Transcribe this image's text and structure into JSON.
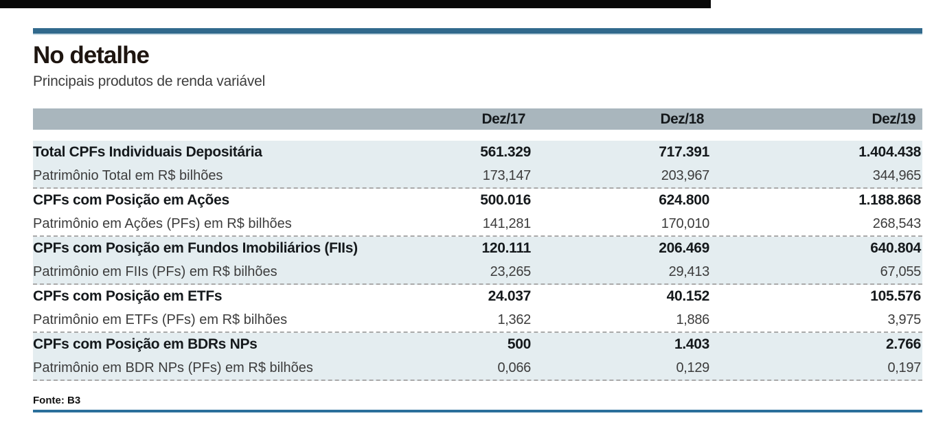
{
  "page": {
    "title": "No detalhe",
    "subtitle": "Principais produtos de renda variável",
    "source": "Fonte: B3"
  },
  "colors": {
    "accent_bar": "#31698c",
    "accent_line": "#2b6f9b",
    "header_band": "#a9b6bd",
    "tinted_row": "#e4edf0",
    "top_black_bar": "#070707",
    "dashed_separator": "#a9a9a9"
  },
  "table": {
    "columns": [
      "Dez/17",
      "Dez/18",
      "Dez/19"
    ],
    "rows": [
      {
        "label": "Total CPFs Individuais Depositária",
        "bold": true,
        "values": [
          "561.329",
          "717.391",
          "1.404.438"
        ]
      },
      {
        "label": "Patrimônio Total em R$ bilhões",
        "bold": false,
        "values": [
          "173,147",
          "203,967",
          "344,965"
        ]
      },
      {
        "label": "CPFs com Posição em Ações",
        "bold": true,
        "values": [
          "500.016",
          "624.800",
          "1.188.868"
        ]
      },
      {
        "label": "Patrimônio em Ações (PFs) em R$ bilhões",
        "bold": false,
        "values": [
          "141,281",
          "170,010",
          "268,543"
        ]
      },
      {
        "label": "CPFs com Posição em Fundos Imobiliários (FIIs)",
        "bold": true,
        "values": [
          "120.111",
          "206.469",
          "640.804"
        ]
      },
      {
        "label": "Patrimônio em FIIs (PFs) em R$ bilhões",
        "bold": false,
        "values": [
          "23,265",
          "29,413",
          "67,055"
        ]
      },
      {
        "label": "CPFs com Posição em ETFs",
        "bold": true,
        "values": [
          "24.037",
          "40.152",
          "105.576"
        ]
      },
      {
        "label": "Patrimônio em ETFs (PFs) em R$ bilhões",
        "bold": false,
        "values": [
          "1,362",
          "1,886",
          "3,975"
        ]
      },
      {
        "label": "CPFs com Posição em BDRs NPs",
        "bold": true,
        "values": [
          "500",
          "1.403",
          "2.766"
        ]
      },
      {
        "label": "Patrimônio em BDR NPs (PFs) em R$ bilhões",
        "bold": false,
        "values": [
          "0,066",
          "0,129",
          "0,197"
        ]
      }
    ]
  },
  "chart_data": {
    "type": "table",
    "title": "No detalhe",
    "subtitle": "Principais produtos de renda variável",
    "source": "Fonte: B3",
    "columns": [
      "Dez/17",
      "Dez/18",
      "Dez/19"
    ],
    "rows": [
      {
        "label": "Total CPFs Individuais Depositária",
        "values": [
          561329,
          717391,
          1404438
        ]
      },
      {
        "label": "Patrimônio Total em R$ bilhões",
        "values": [
          173.147,
          203.967,
          344.965
        ]
      },
      {
        "label": "CPFs com Posição em Ações",
        "values": [
          500016,
          624800,
          1188868
        ]
      },
      {
        "label": "Patrimônio em Ações (PFs) em R$ bilhões",
        "values": [
          141.281,
          170.01,
          268.543
        ]
      },
      {
        "label": "CPFs com Posição em Fundos Imobiliários (FIIs)",
        "values": [
          120111,
          206469,
          640804
        ]
      },
      {
        "label": "Patrimônio em FIIs (PFs) em R$ bilhões",
        "values": [
          23.265,
          29.413,
          67.055
        ]
      },
      {
        "label": "CPFs com Posição em ETFs",
        "values": [
          24037,
          40152,
          105576
        ]
      },
      {
        "label": "Patrimônio em ETFs (PFs) em R$ bilhões",
        "values": [
          1.362,
          1.886,
          3.975
        ]
      },
      {
        "label": "CPFs com Posição em BDRs NPs",
        "values": [
          500,
          1403,
          2766
        ]
      },
      {
        "label": "Patrimônio em BDR NPs (PFs) em R$ bilhões",
        "values": [
          0.066,
          0.129,
          0.197
        ]
      }
    ]
  }
}
